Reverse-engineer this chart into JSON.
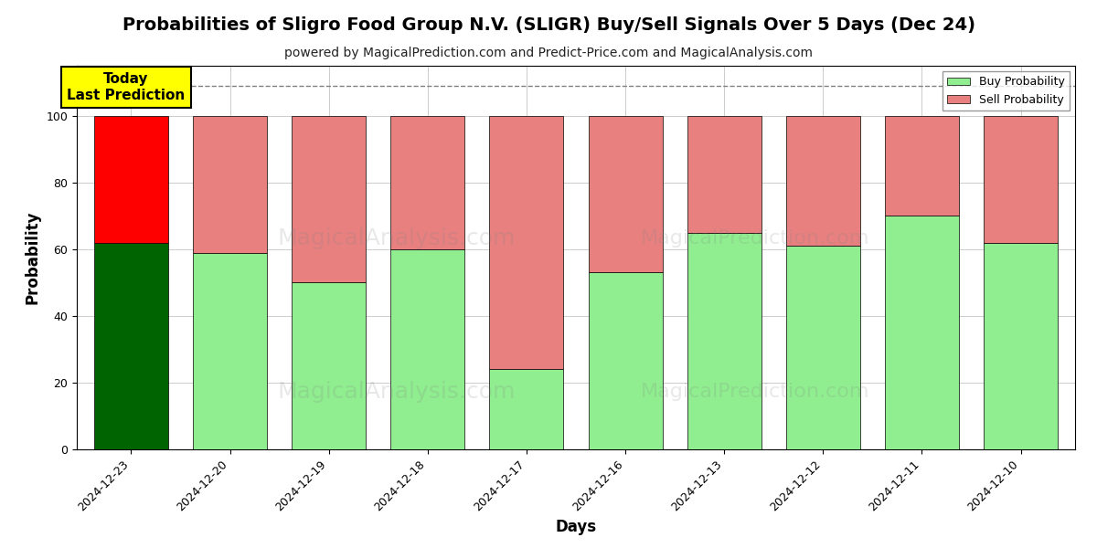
{
  "title": "Probabilities of Sligro Food Group N.V. (SLIGR) Buy/Sell Signals Over 5 Days (Dec 24)",
  "subtitle": "powered by MagicalPrediction.com and Predict-Price.com and MagicalAnalysis.com",
  "xlabel": "Days",
  "ylabel": "Probability",
  "dates": [
    "2024-12-23",
    "2024-12-20",
    "2024-12-19",
    "2024-12-18",
    "2024-12-17",
    "2024-12-16",
    "2024-12-13",
    "2024-12-12",
    "2024-12-11",
    "2024-12-10"
  ],
  "buy_values": [
    62,
    59,
    50,
    60,
    24,
    53,
    65,
    61,
    70,
    62
  ],
  "sell_values": [
    38,
    41,
    50,
    40,
    76,
    47,
    35,
    39,
    30,
    38
  ],
  "today_bar_index": 0,
  "today_buy_color": "#006400",
  "today_sell_color": "#ff0000",
  "buy_color": "#90EE90",
  "sell_color": "#E88080",
  "today_label_bg": "#ffff00",
  "today_label_text": "Today\nLast Prediction",
  "legend_buy_label": "Buy Probability",
  "legend_sell_label": "Sell Probability",
  "ylim": [
    0,
    115
  ],
  "yticks": [
    0,
    20,
    40,
    60,
    80,
    100
  ],
  "dashed_line_y": 109,
  "bar_width": 0.75,
  "background_color": "#ffffff",
  "grid_color": "#cccccc",
  "title_fontsize": 14,
  "subtitle_fontsize": 10,
  "axis_label_fontsize": 12,
  "tick_fontsize": 9
}
